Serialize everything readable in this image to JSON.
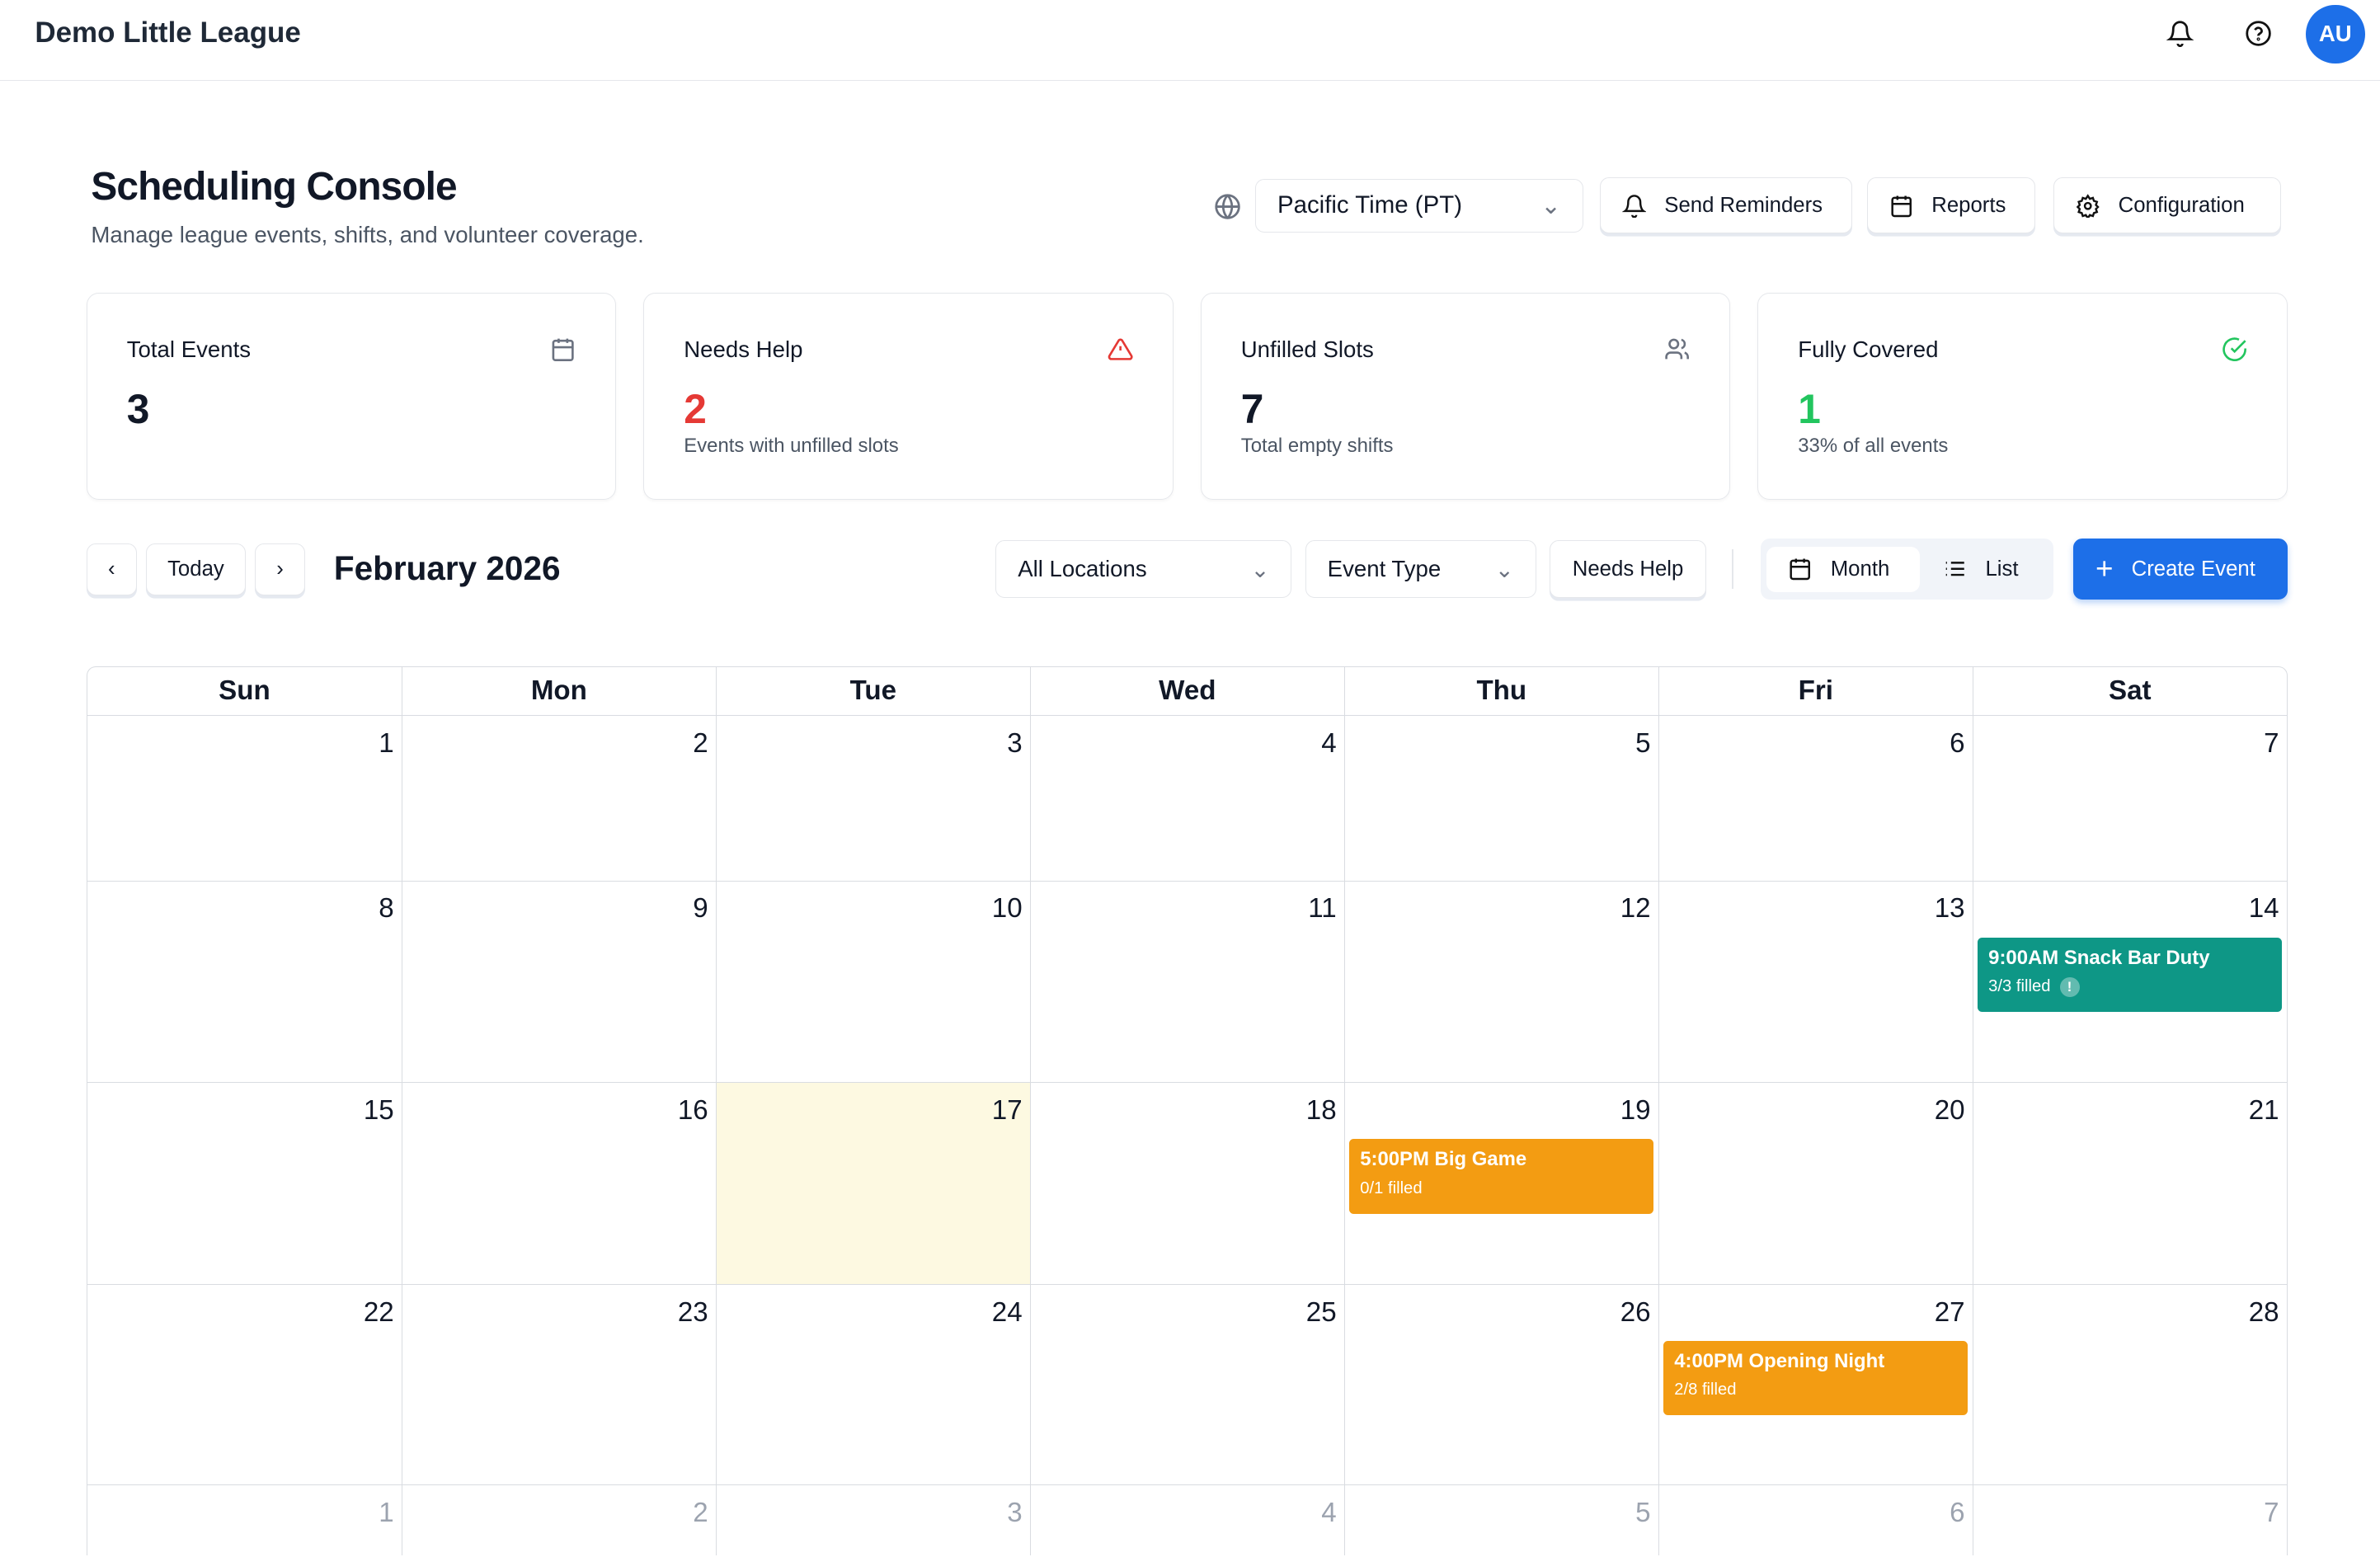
{
  "app": {
    "title": "Demo Little League",
    "avatar": "AU",
    "icons": [
      "bell-icon",
      "help-icon"
    ]
  },
  "page": {
    "title": "Scheduling Console",
    "subtitle": "Manage league events, shifts, and volunteer coverage."
  },
  "toolbar": {
    "timezone": "Pacific Time (PT)",
    "send_reminders": "Send Reminders",
    "reports": "Reports",
    "configuration": "Configuration"
  },
  "stats": [
    {
      "label": "Total Events",
      "value": "3",
      "sub": "",
      "color": "#111827",
      "icon": "calendar-icon"
    },
    {
      "label": "Needs Help",
      "value": "2",
      "sub": "Events with unfilled slots",
      "color": "#e53935",
      "icon": "alert-triangle-icon"
    },
    {
      "label": "Unfilled Slots",
      "value": "7",
      "sub": "Total empty shifts",
      "color": "#111827",
      "icon": "users-icon"
    },
    {
      "label": "Fully Covered",
      "value": "1",
      "sub": "33% of all events",
      "color": "#22c55e",
      "icon": "check-circle-icon"
    }
  ],
  "controls": {
    "today": "Today",
    "month_title": "February 2026",
    "locations": "All Locations",
    "event_type": "Event Type",
    "needs_help": "Needs Help",
    "view_month": "Month",
    "view_list": "List",
    "active_view": "Month",
    "create_event": "Create Event"
  },
  "colors": {
    "accent": "#1d6fe8",
    "teal": "#0e9786",
    "orange": "#f39c12",
    "today_bg": "#fdf9e1"
  },
  "calendar": {
    "weekdays": [
      "Sun",
      "Mon",
      "Tue",
      "Wed",
      "Thu",
      "Fri",
      "Sat"
    ],
    "today": 17,
    "weeks": [
      [
        {
          "d": "1"
        },
        {
          "d": "2"
        },
        {
          "d": "3"
        },
        {
          "d": "4"
        },
        {
          "d": "5"
        },
        {
          "d": "6"
        },
        {
          "d": "7"
        }
      ],
      [
        {
          "d": "8"
        },
        {
          "d": "9"
        },
        {
          "d": "10"
        },
        {
          "d": "11"
        },
        {
          "d": "12"
        },
        {
          "d": "13"
        },
        {
          "d": "14",
          "event": {
            "title": "9:00AM Snack Bar Duty",
            "filled": "3/3 filled",
            "color": "#0e9786",
            "alert": true
          }
        }
      ],
      [
        {
          "d": "15"
        },
        {
          "d": "16"
        },
        {
          "d": "17",
          "today": true
        },
        {
          "d": "18"
        },
        {
          "d": "19",
          "event": {
            "title": "5:00PM Big Game",
            "filled": "0/1 filled",
            "color": "#f39c12"
          }
        },
        {
          "d": "20"
        },
        {
          "d": "21"
        }
      ],
      [
        {
          "d": "22"
        },
        {
          "d": "23"
        },
        {
          "d": "24"
        },
        {
          "d": "25"
        },
        {
          "d": "26"
        },
        {
          "d": "27",
          "event": {
            "title": "4:00PM Opening Night",
            "filled": "2/8 filled",
            "color": "#f39c12"
          }
        },
        {
          "d": "28"
        }
      ],
      [
        {
          "d": "1",
          "other": true
        },
        {
          "d": "2",
          "other": true
        },
        {
          "d": "3",
          "other": true
        },
        {
          "d": "4",
          "other": true
        },
        {
          "d": "5",
          "other": true
        },
        {
          "d": "6",
          "other": true
        },
        {
          "d": "7",
          "other": true
        }
      ]
    ]
  }
}
